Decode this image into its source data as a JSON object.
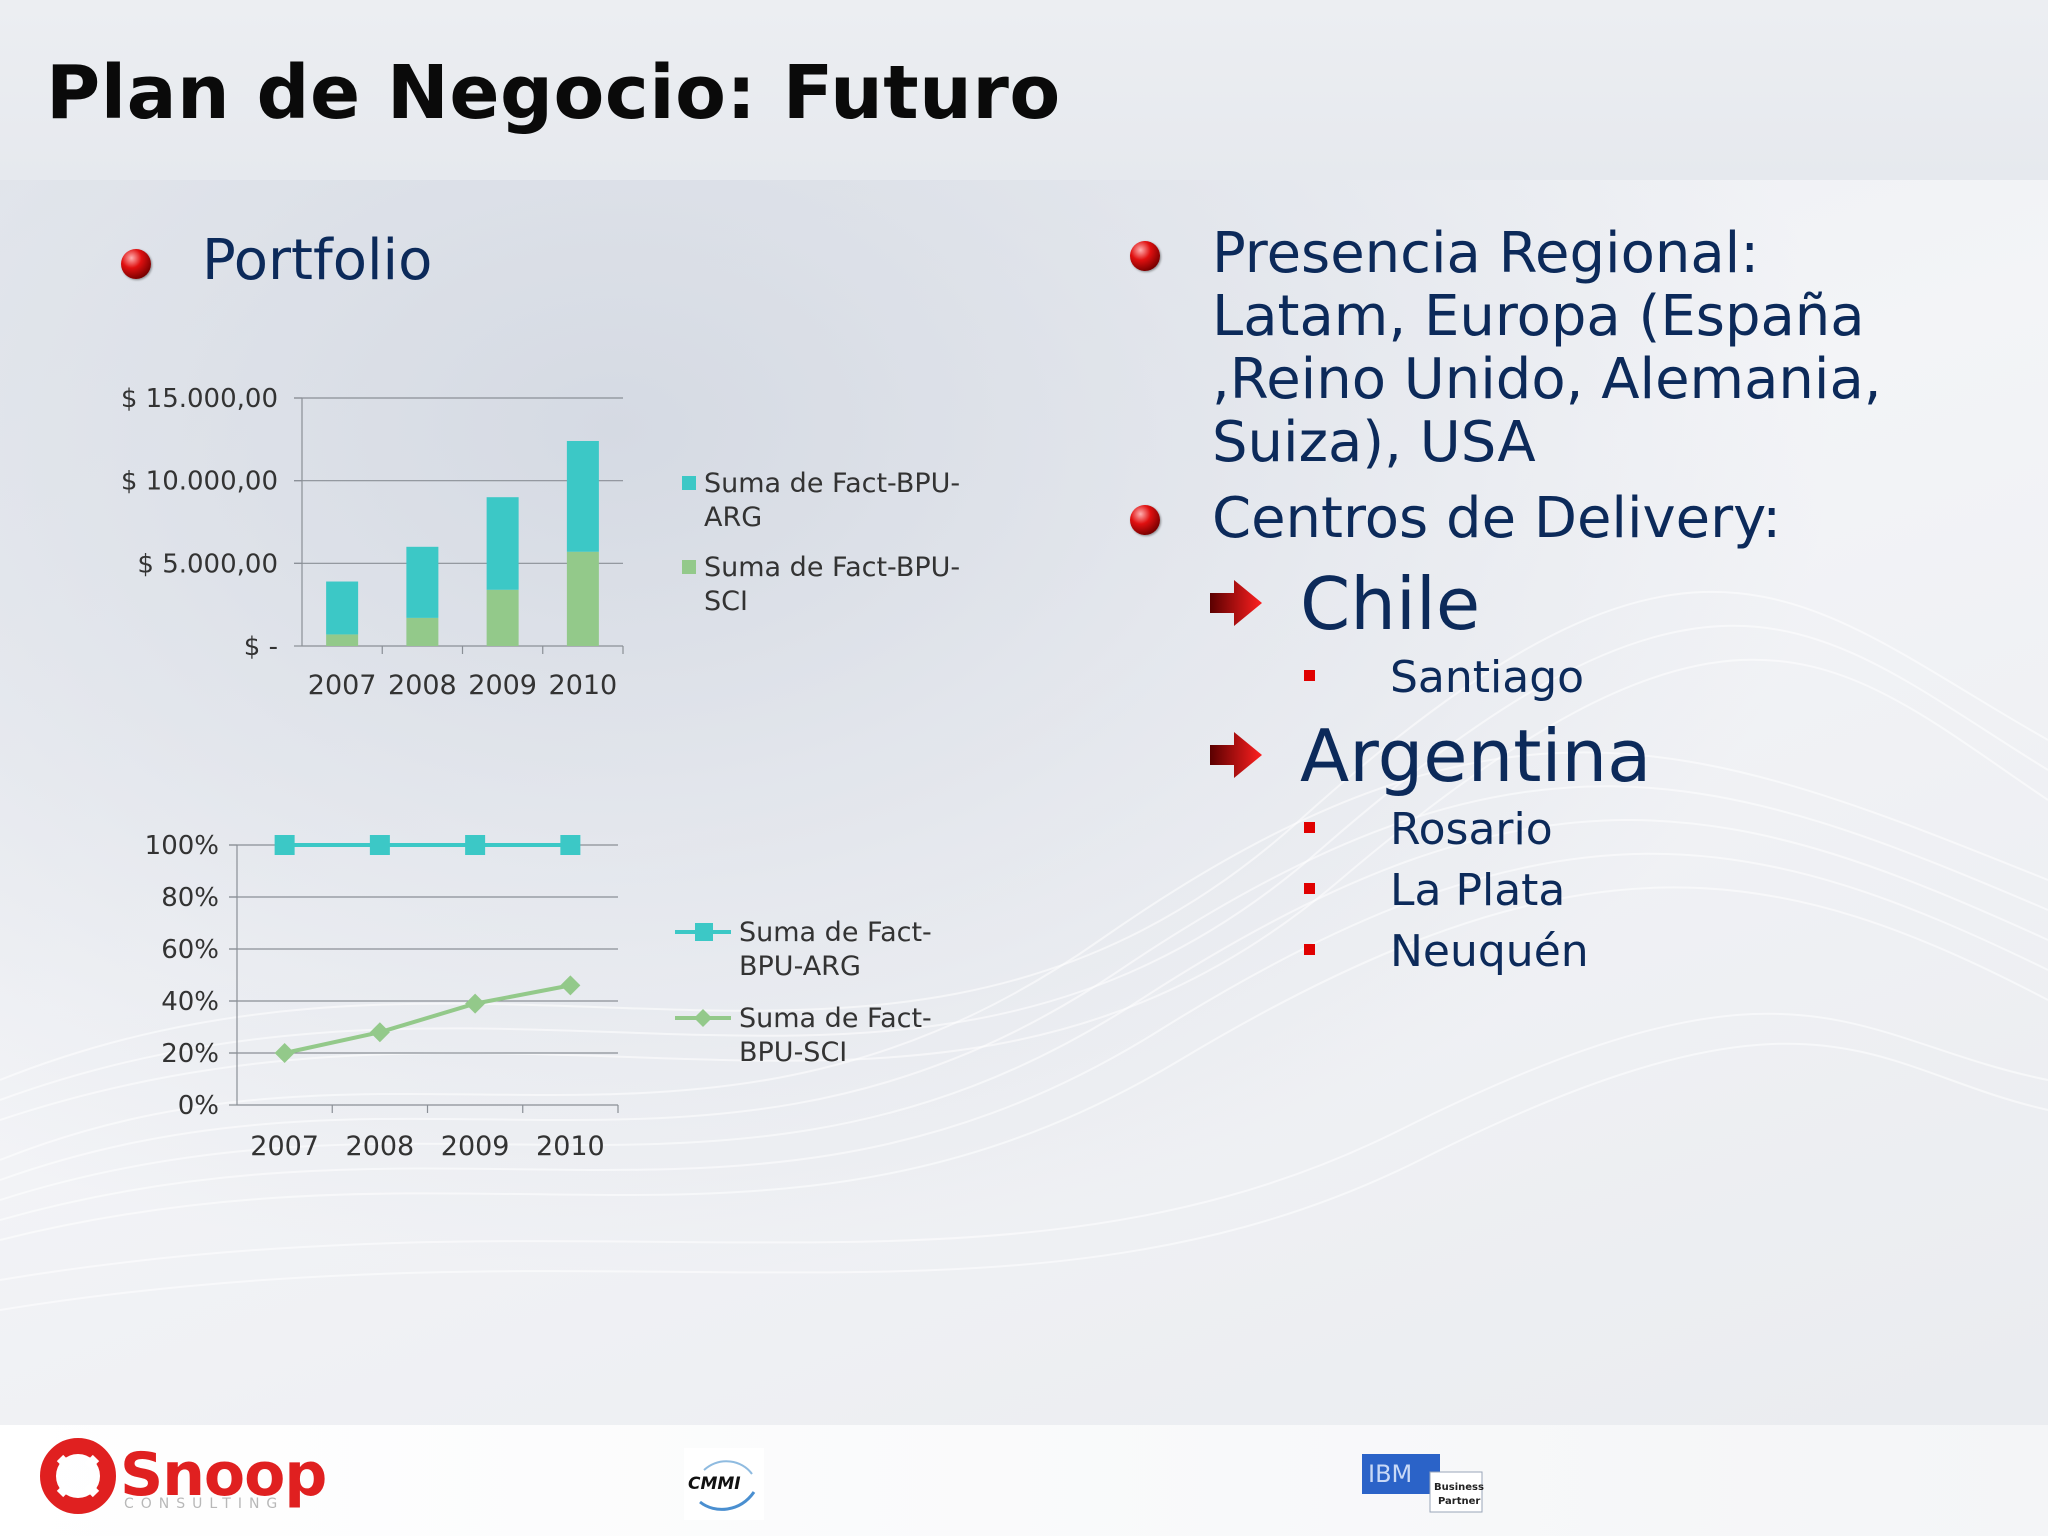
{
  "slide": {
    "title": "Plan de Negocio: Futuro"
  },
  "left": {
    "heading": "Portfolio"
  },
  "right": {
    "regional_lines": [
      "Presencia Regional:",
      "Latam, Europa (España",
      ",Reino Unido, Alemania,",
      "Suiza), USA"
    ],
    "delivery_heading": "Centros de Delivery:",
    "countries": [
      {
        "name": "Chile",
        "cities": [
          "Santiago"
        ]
      },
      {
        "name": "Argentina",
        "cities": [
          "Rosario",
          "La Plata",
          "Neuquén"
        ]
      }
    ]
  },
  "footer": {
    "snoop_name": "Snoop",
    "snoop_sub": "CONSULTING",
    "cmmi": "CMMI",
    "ibm": "IBM",
    "ibm_sub_1": "Business",
    "ibm_sub_2": "Partner"
  },
  "colors": {
    "arg": "#3cc8c6",
    "sci": "#93c98a",
    "text_blue": "#0c2a5a",
    "bullet_red": "#e00000"
  },
  "chart_data": [
    {
      "type": "bar",
      "stacked": true,
      "categories": [
        "2007",
        "2008",
        "2009",
        "2010"
      ],
      "series": [
        {
          "name": "Suma de Fact-BPU-SCI",
          "values": [
            700,
            1700,
            3400,
            5700
          ]
        },
        {
          "name": "Suma de Fact-BPU-ARG",
          "values": [
            3200,
            4300,
            5600,
            6700
          ]
        }
      ],
      "ylim": [
        0,
        15000
      ],
      "yticks": [
        0,
        5000,
        10000,
        15000
      ],
      "ytick_labels": [
        "$ -",
        "$ 5.000,00",
        "$ 10.000,00",
        "$ 15.000,00"
      ],
      "legend": [
        {
          "lines": [
            "Suma de Fact-BPU-",
            "ARG"
          ]
        },
        {
          "lines": [
            "Suma de Fact-BPU-",
            "SCI"
          ]
        }
      ],
      "legend_position": "right",
      "grid": true
    },
    {
      "type": "line",
      "categories": [
        "2007",
        "2008",
        "2009",
        "2010"
      ],
      "series": [
        {
          "name": "Suma de Fact-BPU-ARG",
          "values": [
            100,
            100,
            100,
            100
          ],
          "marker": "square"
        },
        {
          "name": "Suma de Fact-BPU-SCI",
          "values": [
            20,
            28,
            39,
            46
          ],
          "marker": "diamond"
        }
      ],
      "ylim": [
        0,
        100
      ],
      "yticks": [
        0,
        20,
        40,
        60,
        80,
        100
      ],
      "ytick_labels": [
        "0%",
        "20%",
        "40%",
        "60%",
        "80%",
        "100%"
      ],
      "legend": [
        {
          "lines": [
            "Suma de Fact-",
            "BPU-ARG"
          ]
        },
        {
          "lines": [
            "Suma de Fact-",
            "BPU-SCI"
          ]
        }
      ],
      "legend_position": "right",
      "grid": true
    }
  ]
}
